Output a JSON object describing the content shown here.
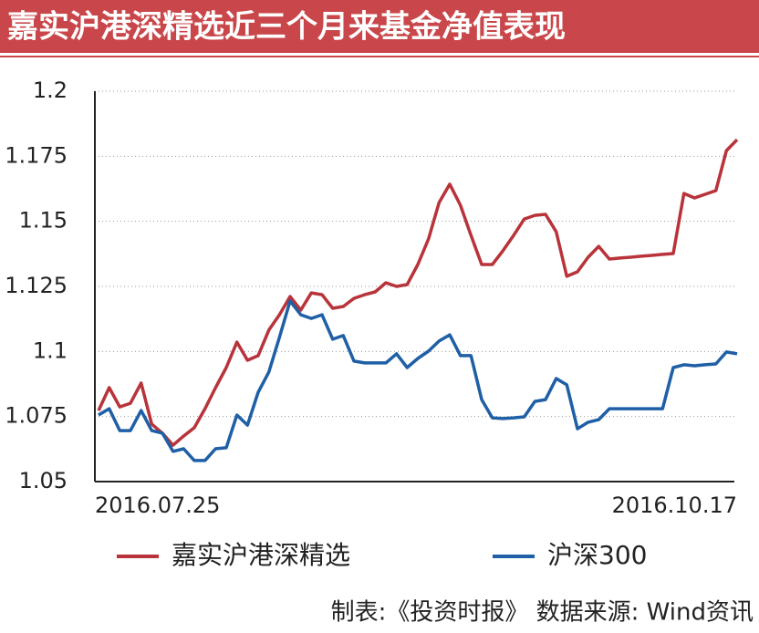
{
  "chart_data": {
    "type": "line",
    "title": "嘉实沪港深精选近三个月来基金净值表现",
    "footer": "制表:《投资时报》  数据来源: Wind资讯",
    "categories": [
      "2016.07.25",
      null,
      null,
      null,
      null,
      null,
      null,
      null,
      null,
      null,
      null,
      null,
      null,
      null,
      null,
      null,
      null,
      null,
      null,
      null,
      null,
      null,
      null,
      null,
      null,
      null,
      null,
      null,
      null,
      null,
      null,
      null,
      null,
      null,
      null,
      null,
      null,
      null,
      null,
      null,
      null,
      null,
      null,
      null,
      null,
      null,
      null,
      null,
      null,
      null,
      null,
      null,
      null,
      null,
      null,
      null,
      null,
      null,
      null,
      null,
      "2016.10.17"
    ],
    "series": [
      {
        "name": "嘉实沪港深精选",
        "color": "#b8333a",
        "values": [
          1.0773,
          1.0861,
          1.0787,
          1.0801,
          1.0879,
          1.0721,
          1.0686,
          1.064,
          1.0675,
          1.0707,
          1.078,
          1.0861,
          1.0938,
          1.1036,
          1.0966,
          1.0984,
          1.1082,
          1.1141,
          1.1211,
          1.1159,
          1.1225,
          1.1218,
          1.1166,
          1.1173,
          1.1204,
          1.1218,
          1.1229,
          1.1264,
          1.125,
          1.1257,
          1.1334,
          1.1432,
          1.1572,
          1.1643,
          1.1562,
          1.1446,
          1.1334,
          1.1334,
          1.1387,
          1.1446,
          1.1509,
          1.1523,
          1.1527,
          1.146,
          1.1289,
          1.1306,
          1.1362,
          1.1404,
          1.1355,
          1.1359,
          1.1362,
          1.1366,
          1.1369,
          1.1373,
          1.1376,
          1.1607,
          1.159,
          1.1604,
          1.1618,
          1.1772,
          1.1814
        ]
      },
      {
        "name": "沪深300",
        "color": "#1f5fa6",
        "values": [
          1.0756,
          1.078,
          1.0696,
          1.0696,
          1.0773,
          1.0696,
          1.0686,
          1.0616,
          1.0626,
          1.0581,
          1.0581,
          1.0626,
          1.063,
          1.0756,
          1.0717,
          1.0843,
          1.0921,
          1.1054,
          1.1194,
          1.1141,
          1.1127,
          1.1141,
          1.1047,
          1.1061,
          1.0963,
          1.0956,
          1.0956,
          1.0956,
          1.0991,
          1.0938,
          1.0973,
          1.1001,
          1.104,
          1.1064,
          1.0984,
          1.0984,
          1.0815,
          1.0745,
          1.0742,
          1.0745,
          1.0749,
          1.0808,
          1.0815,
          1.0896,
          1.0872,
          1.0703,
          1.0728,
          1.0738,
          1.078,
          1.078,
          1.078,
          1.078,
          1.078,
          1.078,
          1.0938,
          1.0949,
          1.0945,
          1.0949,
          1.0952,
          1.0998,
          1.0991
        ]
      }
    ],
    "ylim": [
      1.05,
      1.2
    ],
    "yticks": [
      1.05,
      1.075,
      1.1,
      1.125,
      1.15,
      1.175,
      1.2
    ],
    "grid": true
  }
}
